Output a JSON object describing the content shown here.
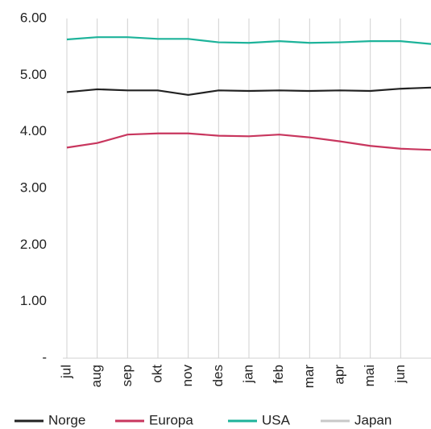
{
  "chart_data": {
    "type": "line",
    "categories": [
      "jul",
      "aug",
      "sep",
      "okt",
      "nov",
      "des",
      "jan",
      "feb",
      "mar",
      "apr",
      "mai",
      "jun",
      null
    ],
    "series": [
      {
        "name": "Norge",
        "color": "#222222",
        "values": [
          4.7,
          4.75,
          4.73,
          4.73,
          4.65,
          4.73,
          4.72,
          4.73,
          4.72,
          4.73,
          4.72,
          4.76,
          4.78
        ]
      },
      {
        "name": "Europa",
        "color": "#c8365e",
        "values": [
          3.72,
          3.8,
          3.95,
          3.97,
          3.97,
          3.93,
          3.92,
          3.95,
          3.9,
          3.83,
          3.75,
          3.7,
          3.68
        ]
      },
      {
        "name": "USA",
        "color": "#1db39a",
        "values": [
          5.63,
          5.67,
          5.67,
          5.64,
          5.64,
          5.58,
          5.57,
          5.6,
          5.57,
          5.58,
          5.6,
          5.6,
          5.55
        ]
      },
      {
        "name": "Japan",
        "color": "#c8c8c8",
        "values": [
          null,
          null,
          null,
          null,
          null,
          null,
          null,
          null,
          null,
          null,
          null,
          null,
          null
        ]
      }
    ],
    "ylim": [
      0,
      6
    ],
    "yticks": [
      {
        "value": 0,
        "label": "-"
      },
      {
        "value": 1,
        "label": "1.00"
      },
      {
        "value": 2,
        "label": "2.00"
      },
      {
        "value": 3,
        "label": "3.00"
      },
      {
        "value": 4,
        "label": "4.00"
      },
      {
        "value": 5,
        "label": "5.00"
      },
      {
        "value": 6,
        "label": "6.00"
      }
    ],
    "grid": true
  }
}
